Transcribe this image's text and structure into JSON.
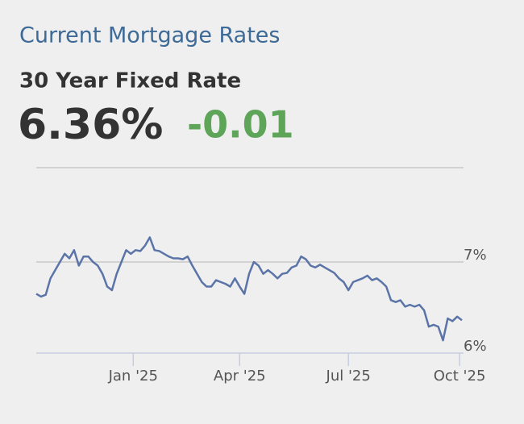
{
  "chart_data": {
    "type": "line",
    "title": "Current Mortgage Rates",
    "subtitle": "30 Year Fixed Rate",
    "current_value": "6.36%",
    "change": "-0.01",
    "values": [
      6.65,
      6.62,
      6.64,
      6.82,
      6.91,
      7.0,
      7.09,
      7.04,
      7.13,
      6.96,
      7.06,
      7.06,
      7.0,
      6.96,
      6.87,
      6.73,
      6.69,
      6.87,
      7.0,
      7.13,
      7.09,
      7.13,
      7.12,
      7.18,
      7.27,
      7.13,
      7.12,
      7.09,
      7.06,
      7.04,
      7.04,
      7.03,
      7.06,
      6.96,
      6.87,
      6.78,
      6.73,
      6.73,
      6.8,
      6.78,
      6.76,
      6.73,
      6.82,
      6.73,
      6.65,
      6.87,
      7.0,
      6.96,
      6.87,
      6.91,
      6.87,
      6.82,
      6.87,
      6.88,
      6.94,
      6.96,
      7.06,
      7.03,
      6.96,
      6.94,
      6.97,
      6.94,
      6.91,
      6.88,
      6.82,
      6.78,
      6.69,
      6.78,
      6.8,
      6.82,
      6.85,
      6.8,
      6.82,
      6.78,
      6.73,
      6.58,
      6.56,
      6.58,
      6.51,
      6.53,
      6.51,
      6.53,
      6.47,
      6.29,
      6.31,
      6.29,
      6.14,
      6.38,
      6.35,
      6.4,
      6.36
    ],
    "color": "#5b74a8",
    "xlim": [
      0,
      90
    ],
    "xticks": [
      {
        "value": 20.5,
        "label": "Jan '25"
      },
      {
        "value": 43,
        "label": "Apr '25"
      },
      {
        "value": 66,
        "label": "Jul '25"
      },
      {
        "value": 89.5,
        "label": "Oct '25"
      }
    ],
    "ylim": [
      6,
      8
    ],
    "yticks": [
      {
        "value": 6,
        "label": "6%"
      },
      {
        "value": 7,
        "label": "7%"
      }
    ],
    "grid": true
  }
}
